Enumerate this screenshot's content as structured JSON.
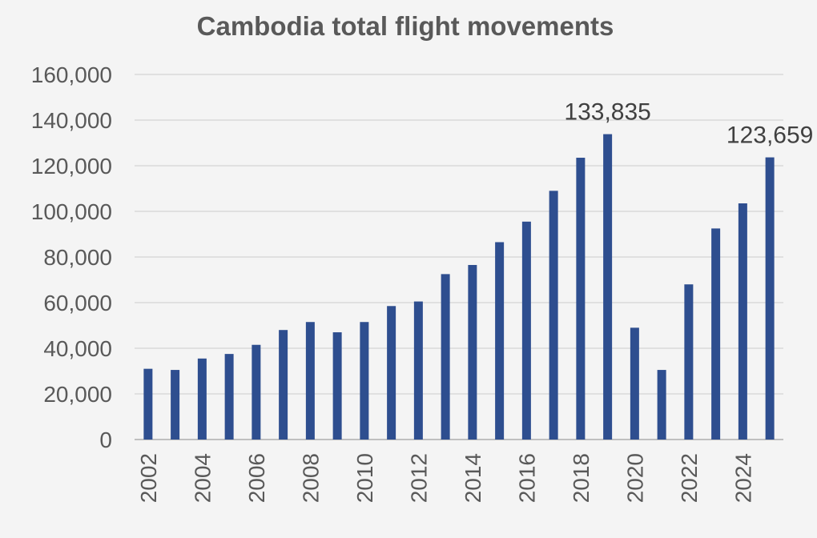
{
  "chart_data": {
    "type": "bar",
    "title": "Cambodia total flight movements",
    "xlabel": "",
    "ylabel": "",
    "ylim": [
      0,
      160000
    ],
    "yticks": [
      "0",
      "20,000",
      "40,000",
      "60,000",
      "80,000",
      "100,000",
      "120,000",
      "140,000",
      "160,000"
    ],
    "grid": true,
    "legend": "none",
    "bar_color": "#2e4e8f",
    "categories": [
      "2002",
      "2003",
      "2004",
      "2005",
      "2006",
      "2007",
      "2008",
      "2009",
      "2010",
      "2011",
      "2012",
      "2013",
      "2014",
      "2015",
      "2016",
      "2017",
      "2018",
      "2019",
      "2020",
      "2021",
      "2022",
      "2023",
      "2024",
      "2025"
    ],
    "xtick_labels": [
      "2002",
      "",
      "2004",
      "",
      "2006",
      "",
      "2008",
      "",
      "2010",
      "",
      "2012",
      "",
      "2014",
      "",
      "2016",
      "",
      "2018",
      "",
      "2020",
      "",
      "2022",
      "",
      "2024",
      ""
    ],
    "values": [
      31000,
      30500,
      35500,
      37500,
      41500,
      48000,
      51500,
      47000,
      51500,
      58500,
      60500,
      72500,
      76500,
      86500,
      95500,
      109000,
      123500,
      133835,
      49000,
      30500,
      68000,
      92500,
      103500,
      123659
    ],
    "data_labels": [
      "",
      "",
      "",
      "",
      "",
      "",
      "",
      "",
      "",
      "",
      "",
      "",
      "",
      "",
      "",
      "",
      "",
      "133,835",
      "",
      "",
      "",
      "",
      "",
      "123,659"
    ]
  }
}
